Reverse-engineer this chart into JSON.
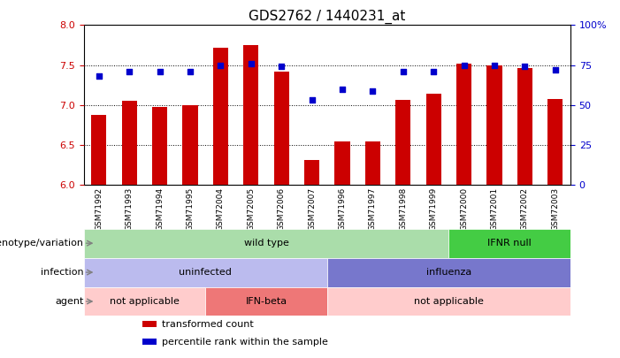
{
  "title": "GDS2762 / 1440231_at",
  "samples": [
    "GSM71992",
    "GSM71993",
    "GSM71994",
    "GSM71995",
    "GSM72004",
    "GSM72005",
    "GSM72006",
    "GSM72007",
    "GSM71996",
    "GSM71997",
    "GSM71998",
    "GSM71999",
    "GSM72000",
    "GSM72001",
    "GSM72002",
    "GSM72003"
  ],
  "bar_values": [
    6.88,
    7.05,
    6.98,
    7.0,
    7.72,
    7.75,
    7.42,
    6.31,
    6.55,
    6.55,
    7.07,
    7.14,
    7.52,
    7.5,
    7.46,
    7.08
  ],
  "dot_values": [
    68,
    71,
    71,
    71,
    75,
    76,
    74,
    53,
    60,
    59,
    71,
    71,
    75,
    75,
    74,
    72
  ],
  "ylim_left": [
    6.0,
    8.0
  ],
  "ylim_right": [
    0,
    100
  ],
  "yticks_left": [
    6.0,
    6.5,
    7.0,
    7.5,
    8.0
  ],
  "yticks_right": [
    0,
    25,
    50,
    75,
    100
  ],
  "ytick_labels_right": [
    "0",
    "25",
    "50",
    "75",
    "100%"
  ],
  "bar_color": "#cc0000",
  "dot_color": "#0000cc",
  "background_color": "#ffffff",
  "grid_color": "#000000",
  "annotation_rows": [
    {
      "label": "genotype/variation",
      "segments": [
        {
          "text": "wild type",
          "start": 0,
          "end": 12,
          "color": "#aaddaa"
        },
        {
          "text": "IFNR null",
          "start": 12,
          "end": 16,
          "color": "#44cc44"
        }
      ]
    },
    {
      "label": "infection",
      "segments": [
        {
          "text": "uninfected",
          "start": 0,
          "end": 8,
          "color": "#bbbbee"
        },
        {
          "text": "influenza",
          "start": 8,
          "end": 16,
          "color": "#7777cc"
        }
      ]
    },
    {
      "label": "agent",
      "segments": [
        {
          "text": "not applicable",
          "start": 0,
          "end": 4,
          "color": "#ffcccc"
        },
        {
          "text": "IFN-beta",
          "start": 4,
          "end": 8,
          "color": "#ee7777"
        },
        {
          "text": "not applicable",
          "start": 8,
          "end": 16,
          "color": "#ffcccc"
        }
      ]
    }
  ],
  "legend_items": [
    {
      "color": "#cc0000",
      "label": "transformed count"
    },
    {
      "color": "#0000cc",
      "label": "percentile rank within the sample"
    }
  ]
}
